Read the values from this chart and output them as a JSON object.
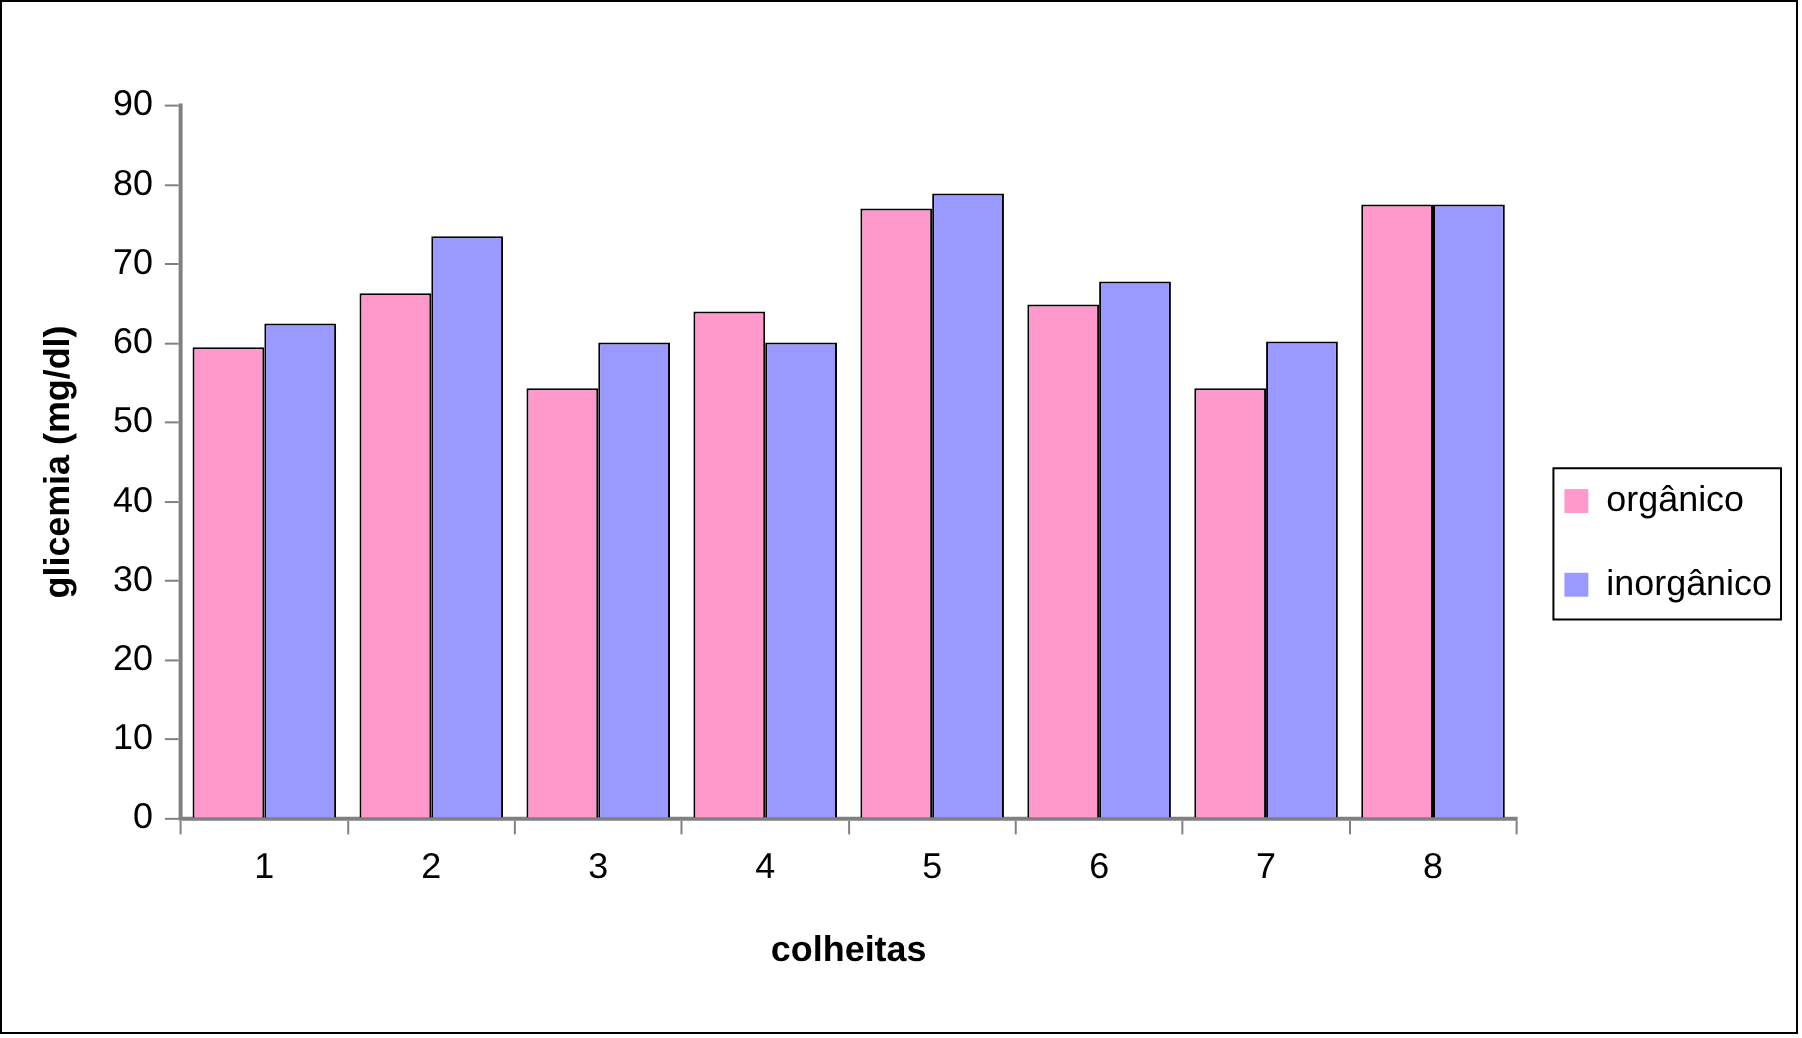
{
  "chart_data": {
    "type": "bar",
    "xlabel": "colheitas",
    "ylabel": "glicemia (mg/dl)",
    "categories": [
      "1",
      "2",
      "3",
      "4",
      "5",
      "6",
      "7",
      "8"
    ],
    "series": [
      {
        "name": "orgânico",
        "color": "#ff99cc",
        "values": [
          59.5,
          66.3,
          54.3,
          64.0,
          77.0,
          64.9,
          54.3,
          77.5
        ]
      },
      {
        "name": "inorgânico",
        "color": "#9999ff",
        "values": [
          62.5,
          73.5,
          60.1,
          60.1,
          78.9,
          67.8,
          60.2,
          77.5
        ]
      }
    ],
    "ylim": [
      0,
      90
    ],
    "yticks": [
      0,
      10,
      20,
      30,
      40,
      50,
      60,
      70,
      80,
      90
    ],
    "legend": "right"
  }
}
